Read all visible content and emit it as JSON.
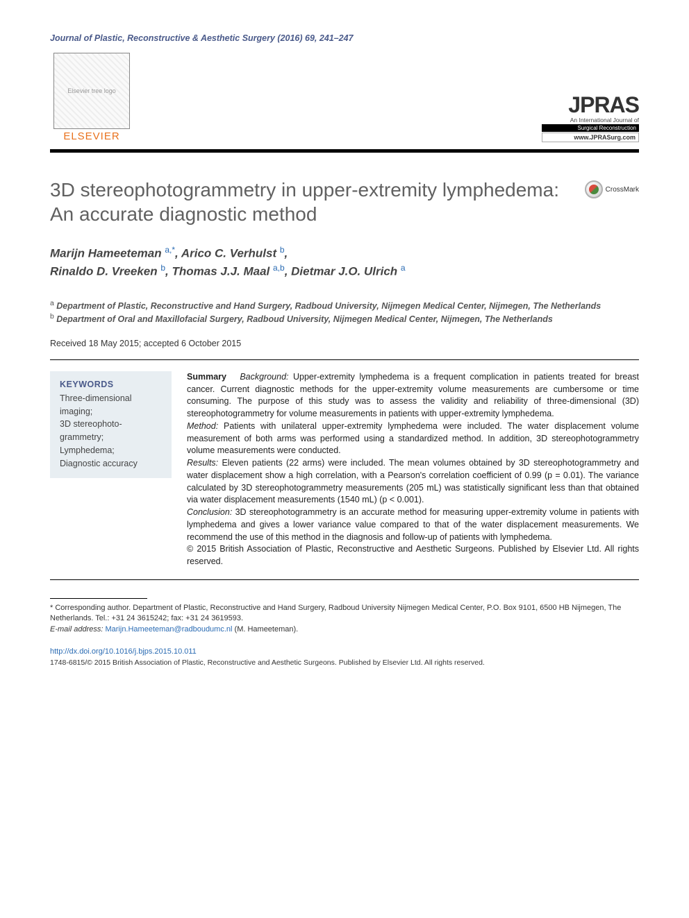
{
  "journal_reference": "Journal of Plastic, Reconstructive & Aesthetic Surgery (2016) 69, 241–247",
  "publisher": {
    "name": "ELSEVIER",
    "tree_alt": "Elsevier tree logo"
  },
  "jpras": {
    "logo": "JPRAS",
    "subtitle_line": "An International Journal of",
    "band": "Surgical Reconstruction",
    "url": "www.JPRASurg.com"
  },
  "crossmark_label": "CrossMark",
  "title": "3D stereophotogrammetry in upper-extremity lymphedema: An accurate diagnostic method",
  "authors_html": "Marijn Hameeteman <sup>a,</sup><sup>*</sup>, Arico C. Verhulst <sup>b</sup>,<br>Rinaldo D. Vreeken <sup>b</sup>, Thomas J.J. Maal <sup>a,b</sup>, Dietmar J.O. Ulrich <sup>a</sup>",
  "affiliations": {
    "a": "Department of Plastic, Reconstructive and Hand Surgery, Radboud University, Nijmegen Medical Center, Nijmegen, The Netherlands",
    "b": "Department of Oral and Maxillofacial Surgery, Radboud University, Nijmegen Medical Center, Nijmegen, The Netherlands"
  },
  "dates": "Received 18 May 2015; accepted 6 October 2015",
  "keywords": {
    "heading": "KEYWORDS",
    "items": "Three-dimensional imaging;\n3D stereophoto-grammetry;\nLymphedema;\nDiagnostic accuracy"
  },
  "summary": {
    "lead": "Summary",
    "background_label": "Background:",
    "background": "Upper-extremity lymphedema is a frequent complication in patients treated for breast cancer. Current diagnostic methods for the upper-extremity volume measurements are cumbersome or time consuming. The purpose of this study was to assess the validity and reliability of three-dimensional (3D) stereophotogrammetry for volume measurements in patients with upper-extremity lymphedema.",
    "method_label": "Method:",
    "method": "Patients with unilateral upper-extremity lymphedema were included. The water displacement volume measurement of both arms was performed using a standardized method. In addition, 3D stereophotogrammetry volume measurements were conducted.",
    "results_label": "Results:",
    "results": "Eleven patients (22 arms) were included. The mean volumes obtained by 3D stereophotogrammetry and water displacement show a high correlation, with a Pearson's correlation coefficient of 0.99 (p = 0.01). The variance calculated by 3D stereophotogrammetry measurements (205 mL) was statistically significant less than that obtained via water displacement measurements (1540 mL) (p < 0.001).",
    "conclusion_label": "Conclusion:",
    "conclusion": "3D stereophotogrammetry is an accurate method for measuring upper-extremity volume in patients with lymphedema and gives a lower variance value compared to that of the water displacement measurements. We recommend the use of this method in the diagnosis and follow-up of patients with lymphedema.",
    "copyright": "© 2015 British Association of Plastic, Reconstructive and Aesthetic Surgeons. Published by Elsevier Ltd. All rights reserved."
  },
  "footnotes": {
    "corresponding": "* Corresponding author. Department of Plastic, Reconstructive and Hand Surgery, Radboud University Nijmegen Medical Center, P.O. Box 9101, 6500 HB Nijmegen, The Netherlands. Tel.: +31 24 3615242; fax: +31 24 3619593.",
    "email_label": "E-mail address:",
    "email": "Marijn.Hameeteman@radboudumc.nl",
    "email_author": "(M. Hameeteman)."
  },
  "doi": "http://dx.doi.org/10.1016/j.bjps.2015.10.011",
  "issn_line": "1748-6815/© 2015 British Association of Plastic, Reconstructive and Aesthetic Surgeons. Published by Elsevier Ltd. All rights reserved.",
  "colors": {
    "link": "#2a6bb3",
    "heading_muted": "#616161",
    "journal_ref": "#4a5a8a",
    "elsevier_orange": "#e9711c",
    "keywords_bg": "#e8eef2"
  }
}
